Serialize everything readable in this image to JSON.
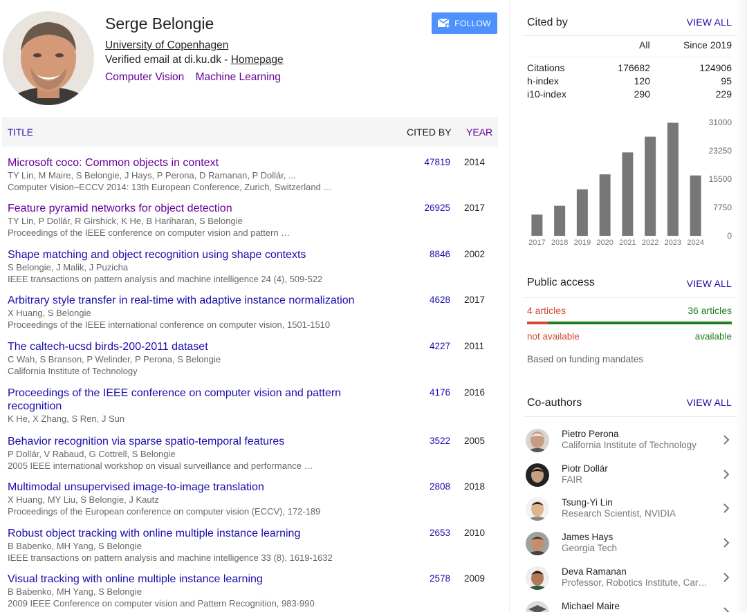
{
  "profile": {
    "name": "Serge Belongie",
    "affiliation": "University of Copenhagen",
    "email_prefix": "Verified email at di.ku.dk - ",
    "homepage_label": "Homepage",
    "interests": [
      "Computer Vision",
      "Machine Learning"
    ],
    "follow_label": "FOLLOW"
  },
  "table": {
    "col_title": "TITLE",
    "col_cited": "CITED BY",
    "col_year": "YEAR"
  },
  "publications": [
    {
      "title": "Microsoft coco: Common objects in context",
      "authors": "TY Lin, M Maire, S Belongie, J Hays, P Perona, D Ramanan, P Dollár, ...",
      "venue": "Computer Vision–ECCV 2014: 13th European Conference, Zurich, Switzerland …",
      "cited": "47819",
      "year": "2014",
      "visited": true
    },
    {
      "title": "Feature pyramid networks for object detection",
      "authors": "TY Lin, P Dollár, R Girshick, K He, B Hariharan, S Belongie",
      "venue": "Proceedings of the IEEE conference on computer vision and pattern …",
      "cited": "26925",
      "year": "2017",
      "visited": true
    },
    {
      "title": "Shape matching and object recognition using shape contexts",
      "authors": "S Belongie, J Malik, J Puzicha",
      "venue": "IEEE transactions on pattern analysis and machine intelligence 24 (4), 509-522",
      "cited": "8846",
      "year": "2002",
      "visited": false
    },
    {
      "title": "Arbitrary style transfer in real-time with adaptive instance normalization",
      "authors": "X Huang, S Belongie",
      "venue": "Proceedings of the IEEE international conference on computer vision, 1501-1510",
      "cited": "4628",
      "year": "2017",
      "visited": false
    },
    {
      "title": "The caltech-ucsd birds-200-2011 dataset",
      "authors": "C Wah, S Branson, P Welinder, P Perona, S Belongie",
      "venue": "California Institute of Technology",
      "cited": "4227",
      "year": "2011",
      "visited": false
    },
    {
      "title": "Proceedings of the IEEE conference on computer vision and pattern recognition",
      "authors": "K He, X Zhang, S Ren, J Sun",
      "venue": "",
      "cited": "4176",
      "year": "2016",
      "visited": false
    },
    {
      "title": "Behavior recognition via sparse spatio-temporal features",
      "authors": "P Dollár, V Rabaud, G Cottrell, S Belongie",
      "venue": "2005 IEEE international workshop on visual surveillance and performance …",
      "cited": "3522",
      "year": "2005",
      "visited": false
    },
    {
      "title": "Multimodal unsupervised image-to-image translation",
      "authors": "X Huang, MY Liu, S Belongie, J Kautz",
      "venue": "Proceedings of the European conference on computer vision (ECCV), 172-189",
      "cited": "2808",
      "year": "2018",
      "visited": false
    },
    {
      "title": "Robust object tracking with online multiple instance learning",
      "authors": "B Babenko, MH Yang, S Belongie",
      "venue": "IEEE transactions on pattern analysis and machine intelligence 33 (8), 1619-1632",
      "cited": "2653",
      "year": "2010",
      "visited": false
    },
    {
      "title": "Visual tracking with online multiple instance learning",
      "authors": "B Babenko, MH Yang, S Belongie",
      "venue": "2009 IEEE Conference on computer vision and Pattern Recognition, 983-990",
      "cited": "2578",
      "year": "2009",
      "visited": false
    }
  ],
  "cited_by": {
    "heading": "Cited by",
    "view_all": "VIEW ALL",
    "col_all": "All",
    "col_since": "Since 2019",
    "rows": [
      {
        "label": "Citations",
        "all": "176682",
        "since": "124906"
      },
      {
        "label": "h-index",
        "all": "120",
        "since": "95"
      },
      {
        "label": "i10-index",
        "all": "290",
        "since": "229"
      }
    ]
  },
  "chart_data": {
    "type": "bar",
    "categories": [
      "2017",
      "2018",
      "2019",
      "2020",
      "2021",
      "2022",
      "2023",
      "2024"
    ],
    "values": [
      5800,
      8200,
      12700,
      16800,
      22800,
      27100,
      30900,
      16500
    ],
    "yticks": [
      "31000",
      "23250",
      "15500",
      "7750",
      "0"
    ],
    "ylim": [
      0,
      31000
    ],
    "bar_color": "#777777"
  },
  "public_access": {
    "heading": "Public access",
    "view_all": "VIEW ALL",
    "not_available_count": "4 articles",
    "available_count": "36 articles",
    "not_available_label": "not available",
    "available_label": "available",
    "not_available_fraction": 0.1,
    "note": "Based on funding mandates"
  },
  "coauthors": {
    "heading": "Co-authors",
    "view_all": "VIEW ALL",
    "items": [
      {
        "name": "Pietro Perona",
        "affiliation": "California Institute of Technology"
      },
      {
        "name": "Piotr Dollár",
        "affiliation": "FAIR"
      },
      {
        "name": "Tsung-Yi Lin",
        "affiliation": "Research Scientist, NVIDIA"
      },
      {
        "name": "James Hays",
        "affiliation": "Georgia Tech"
      },
      {
        "name": "Deva Ramanan",
        "affiliation": "Professor, Robotics Institute, Car…"
      },
      {
        "name": "Michael Maire",
        "affiliation": ""
      }
    ]
  },
  "colors": {
    "link": "#1a0dab",
    "visited": "#660099",
    "follow_bg": "#4d90fe",
    "not_available": "#d14836",
    "available": "#1e7d1e"
  }
}
